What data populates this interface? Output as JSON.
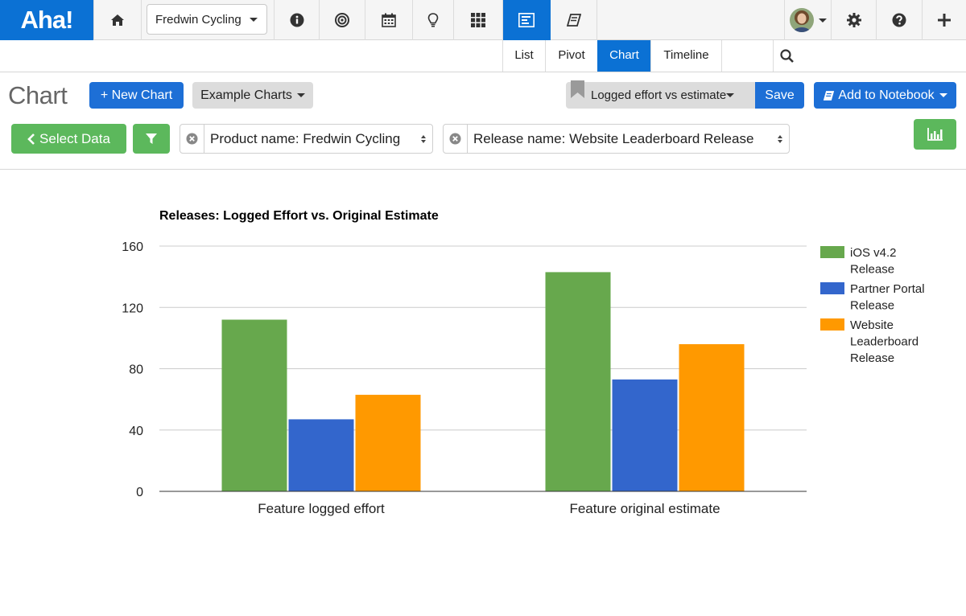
{
  "app": {
    "logo": "Aha!"
  },
  "topnav": {
    "product": "Fredwin Cycling",
    "icons": [
      "home-icon",
      "info-icon",
      "target-icon",
      "calendar-icon",
      "lightbulb-icon",
      "grid-icon",
      "reports-icon",
      "notebook-icon",
      "gear-icon",
      "help-icon",
      "plus-icon"
    ],
    "active": "reports-icon"
  },
  "views": {
    "tabs": [
      "List",
      "Pivot",
      "Chart",
      "Timeline"
    ],
    "active": "Chart",
    "search_placeholder": ""
  },
  "toolbar": {
    "title": "Chart",
    "new_chart": "+ New Chart",
    "example_charts": "Example Charts",
    "saved_view": "Logged effort vs estimate",
    "save": "Save",
    "add_to_notebook": "Add to Notebook"
  },
  "filters": {
    "select_data": "Select Data",
    "product_filter": "Product name: Fredwin Cycling",
    "release_filter": "Release name: Website Leaderboard Release"
  },
  "colors": {
    "brand_blue": "#0b71d4",
    "button_blue": "#1d6fd6",
    "button_green": "#5cb85c"
  },
  "chart_data": {
    "type": "bar",
    "title": "Releases: Logged Effort vs. Original Estimate",
    "categories": [
      "Feature logged effort",
      "Feature original estimate"
    ],
    "series": [
      {
        "name": "iOS v4.2 Release",
        "legend_lines": [
          "iOS v4.2",
          "Release"
        ],
        "color": "#67a84d",
        "values": [
          112,
          143
        ]
      },
      {
        "name": "Partner Portal Release",
        "legend_lines": [
          "Partner Portal",
          "Release"
        ],
        "color": "#3366cc",
        "values": [
          47,
          73
        ]
      },
      {
        "name": "Website Leaderboard Release",
        "legend_lines": [
          "Website",
          "Leaderboard",
          "Release"
        ],
        "color": "#ff9900",
        "values": [
          63,
          96
        ]
      }
    ],
    "ylim": [
      0,
      160
    ],
    "yticks": [
      0,
      40,
      80,
      120,
      160
    ],
    "grid": true,
    "legend": "right",
    "xlabel": "",
    "ylabel": ""
  }
}
